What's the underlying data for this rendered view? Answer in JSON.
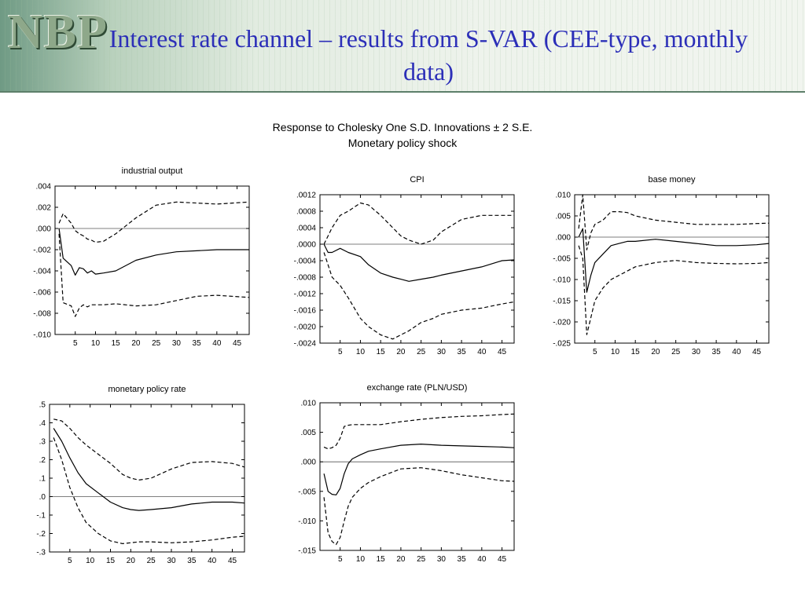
{
  "header": {
    "logo": "NBP",
    "title_line1": "Interest rate channel – results from S-VAR (CEE-type, monthly",
    "title_line2": "data)"
  },
  "figure": {
    "title_line1": "Response to Cholesky One S.D. Innovations ± 2 S.E.",
    "title_line2": "Monetary policy shock"
  },
  "colors": {
    "title": "#2c2fb8",
    "line": "#000000",
    "header_bg": "#eef3ec"
  },
  "chart_data": [
    {
      "id": "industrial-output",
      "type": "line",
      "title": "industrial output",
      "ylim": [
        -0.01,
        0.004
      ],
      "yticks": [
        -0.01,
        -0.008,
        -0.006,
        -0.004,
        -0.002,
        0.0,
        0.002,
        0.004
      ],
      "ytick_labels": [
        "-.010",
        "-.008",
        "-.006",
        "-.004",
        "-.002",
        ".000",
        ".002",
        ".004"
      ],
      "xlim": [
        0,
        48
      ],
      "xticks": [
        5,
        10,
        15,
        20,
        25,
        30,
        35,
        40,
        45
      ],
      "xtick_labels": [
        "5",
        "10",
        "15",
        "20",
        "25",
        "30",
        "35",
        "40",
        "45"
      ],
      "zero_line": true,
      "x": [
        1,
        2,
        4,
        5,
        6,
        7,
        8,
        9,
        10,
        12,
        15,
        20,
        25,
        30,
        35,
        40,
        48
      ],
      "series": [
        {
          "style": "solid",
          "values": [
            0.0,
            -0.0028,
            -0.0035,
            -0.0044,
            -0.0037,
            -0.0038,
            -0.0042,
            -0.004,
            -0.0043,
            -0.0042,
            -0.004,
            -0.003,
            -0.0025,
            -0.0022,
            -0.0021,
            -0.002,
            -0.002
          ]
        },
        {
          "style": "dashed",
          "values": [
            0.0005,
            0.0014,
            0.0005,
            -0.0002,
            -0.0005,
            -0.0007,
            -0.001,
            -0.0011,
            -0.0013,
            -0.0012,
            -0.0005,
            0.001,
            0.0022,
            0.0025,
            0.0024,
            0.0023,
            0.0025
          ]
        },
        {
          "style": "dashed",
          "values": [
            -0.0005,
            -0.007,
            -0.0073,
            -0.0083,
            -0.0075,
            -0.0072,
            -0.0074,
            -0.0072,
            -0.0072,
            -0.0072,
            -0.0071,
            -0.0073,
            -0.0072,
            -0.0068,
            -0.0064,
            -0.0063,
            -0.0065
          ]
        }
      ]
    },
    {
      "id": "cpi",
      "type": "line",
      "title": "CPI",
      "ylim": [
        -0.0024,
        0.0012
      ],
      "yticks": [
        -0.0024,
        -0.002,
        -0.0016,
        -0.0012,
        -0.0008,
        -0.0004,
        0.0,
        0.0004,
        0.0008,
        0.0012
      ],
      "ytick_labels": [
        "-.0024",
        "-.0020",
        "-.0016",
        "-.0012",
        "-.0008",
        "-.0004",
        ".0000",
        ".0004",
        ".0008",
        ".0012"
      ],
      "xlim": [
        0,
        48
      ],
      "xticks": [
        5,
        10,
        15,
        20,
        25,
        30,
        35,
        40,
        45
      ],
      "xtick_labels": [
        "5",
        "10",
        "15",
        "20",
        "25",
        "30",
        "35",
        "40",
        "45"
      ],
      "zero_line": true,
      "x": [
        1,
        2,
        3,
        5,
        7,
        10,
        12,
        15,
        18,
        20,
        22,
        25,
        28,
        30,
        35,
        40,
        45,
        48
      ],
      "series": [
        {
          "style": "solid",
          "values": [
            0.0,
            -0.0002,
            -0.0002,
            -0.0001,
            -0.0002,
            -0.0003,
            -0.0005,
            -0.0007,
            -0.0008,
            -0.00085,
            -0.0009,
            -0.00085,
            -0.0008,
            -0.00075,
            -0.00065,
            -0.00055,
            -0.0004,
            -0.00038
          ]
        },
        {
          "style": "dashed",
          "values": [
            0.0,
            0.0002,
            0.0004,
            0.0007,
            0.0008,
            0.001,
            0.00095,
            0.0007,
            0.0004,
            0.0002,
            0.0001,
            0.0,
            0.0001,
            0.0003,
            0.0006,
            0.0007,
            0.0007,
            0.0007
          ]
        },
        {
          "style": "dashed",
          "values": [
            -0.0002,
            -0.0005,
            -0.0008,
            -0.001,
            -0.0013,
            -0.0018,
            -0.002,
            -0.0022,
            -0.0023,
            -0.0022,
            -0.0021,
            -0.0019,
            -0.0018,
            -0.0017,
            -0.0016,
            -0.00155,
            -0.00145,
            -0.0014
          ]
        }
      ]
    },
    {
      "id": "base-money",
      "type": "line",
      "title": "base money",
      "ylim": [
        -0.025,
        0.01
      ],
      "yticks": [
        -0.025,
        -0.02,
        -0.015,
        -0.01,
        -0.005,
        0.0,
        0.005,
        0.01
      ],
      "ytick_labels": [
        "-.025",
        "-.020",
        "-.015",
        "-.010",
        "-.005",
        ".000",
        ".005",
        ".010"
      ],
      "xlim": [
        0,
        48
      ],
      "xticks": [
        5,
        10,
        15,
        20,
        25,
        30,
        35,
        40,
        45
      ],
      "xtick_labels": [
        "5",
        "10",
        "15",
        "20",
        "25",
        "30",
        "35",
        "40",
        "45"
      ],
      "zero_line": true,
      "x": [
        1,
        2,
        3,
        4,
        5,
        7,
        9,
        11,
        13,
        15,
        20,
        25,
        30,
        35,
        40,
        45,
        48
      ],
      "series": [
        {
          "style": "solid",
          "values": [
            0.0,
            0.002,
            -0.013,
            -0.009,
            -0.006,
            -0.004,
            -0.002,
            -0.0015,
            -0.001,
            -0.001,
            -0.0005,
            -0.001,
            -0.0015,
            -0.002,
            -0.002,
            -0.0018,
            -0.0015
          ]
        },
        {
          "style": "dashed",
          "values": [
            0.002,
            0.01,
            -0.003,
            0.001,
            0.003,
            0.004,
            0.006,
            0.006,
            0.0058,
            0.005,
            0.004,
            0.0035,
            0.003,
            0.003,
            0.003,
            0.0032,
            0.0033
          ]
        },
        {
          "style": "dashed",
          "values": [
            -0.002,
            -0.005,
            -0.023,
            -0.019,
            -0.015,
            -0.012,
            -0.01,
            -0.009,
            -0.008,
            -0.007,
            -0.006,
            -0.0055,
            -0.006,
            -0.0062,
            -0.0063,
            -0.0062,
            -0.006
          ]
        }
      ]
    },
    {
      "id": "monetary-policy-rate",
      "type": "line",
      "title": "monetary policy rate",
      "ylim": [
        -0.3,
        0.5
      ],
      "yticks": [
        -0.3,
        -0.2,
        -0.1,
        0.0,
        0.1,
        0.2,
        0.3,
        0.4,
        0.5
      ],
      "ytick_labels": [
        "-.3",
        "-.2",
        "-.1",
        ".0",
        ".1",
        ".2",
        ".3",
        ".4",
        ".5"
      ],
      "xlim": [
        0,
        48
      ],
      "xticks": [
        5,
        10,
        15,
        20,
        25,
        30,
        35,
        40,
        45
      ],
      "xtick_labels": [
        "5",
        "10",
        "15",
        "20",
        "25",
        "30",
        "35",
        "40",
        "45"
      ],
      "zero_line": true,
      "x": [
        1,
        3,
        5,
        7,
        9,
        12,
        15,
        18,
        20,
        22,
        25,
        30,
        35,
        40,
        45,
        48
      ],
      "series": [
        {
          "style": "solid",
          "values": [
            0.37,
            0.3,
            0.21,
            0.13,
            0.07,
            0.02,
            -0.03,
            -0.06,
            -0.07,
            -0.075,
            -0.07,
            -0.06,
            -0.04,
            -0.03,
            -0.03,
            -0.035
          ]
        },
        {
          "style": "dashed",
          "values": [
            0.42,
            0.41,
            0.37,
            0.32,
            0.28,
            0.23,
            0.18,
            0.12,
            0.1,
            0.09,
            0.1,
            0.15,
            0.185,
            0.19,
            0.18,
            0.16
          ]
        },
        {
          "style": "dashed",
          "values": [
            0.32,
            0.2,
            0.05,
            -0.06,
            -0.14,
            -0.2,
            -0.24,
            -0.255,
            -0.25,
            -0.245,
            -0.245,
            -0.25,
            -0.245,
            -0.235,
            -0.22,
            -0.215
          ]
        }
      ]
    },
    {
      "id": "exchange-rate",
      "type": "line",
      "title": "exchange rate (PLN/USD)",
      "ylim": [
        -0.015,
        0.01
      ],
      "yticks": [
        -0.015,
        -0.01,
        -0.005,
        0.0,
        0.005,
        0.01
      ],
      "ytick_labels": [
        "-.015",
        "-.010",
        "-.005",
        ".000",
        ".005",
        ".010"
      ],
      "xlim": [
        0,
        48
      ],
      "xticks": [
        5,
        10,
        15,
        20,
        25,
        30,
        35,
        40,
        45
      ],
      "xtick_labels": [
        "5",
        "10",
        "15",
        "20",
        "25",
        "30",
        "35",
        "40",
        "45"
      ],
      "zero_line": true,
      "x": [
        1,
        2,
        3,
        4,
        5,
        6,
        7,
        8,
        10,
        12,
        15,
        20,
        25,
        30,
        35,
        40,
        45,
        48
      ],
      "series": [
        {
          "style": "solid",
          "values": [
            -0.002,
            -0.005,
            -0.0055,
            -0.0056,
            -0.0045,
            -0.002,
            -0.0003,
            0.0005,
            0.0012,
            0.0018,
            0.0022,
            0.0028,
            0.003,
            0.0028,
            0.0027,
            0.0026,
            0.0025,
            0.0024
          ]
        },
        {
          "style": "dashed",
          "values": [
            0.0025,
            0.0022,
            0.0024,
            0.0028,
            0.004,
            0.006,
            0.0062,
            0.0063,
            0.0063,
            0.0063,
            0.0063,
            0.0068,
            0.0072,
            0.0075,
            0.0077,
            0.0078,
            0.008,
            0.0081
          ]
        },
        {
          "style": "dashed",
          "values": [
            -0.006,
            -0.012,
            -0.0135,
            -0.014,
            -0.0128,
            -0.01,
            -0.0075,
            -0.006,
            -0.0045,
            -0.0035,
            -0.0025,
            -0.0012,
            -0.001,
            -0.0015,
            -0.0022,
            -0.0027,
            -0.0032,
            -0.0033
          ]
        }
      ]
    }
  ]
}
